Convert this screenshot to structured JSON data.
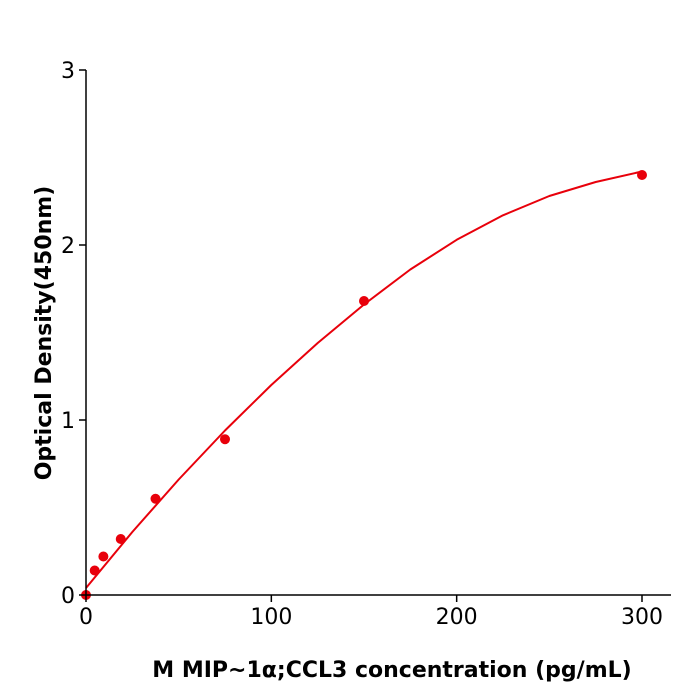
{
  "chart_data": {
    "type": "scatter",
    "xlabel": "M  MIP~1α;CCL3 concentration (pg/mL)",
    "ylabel": "Optical Density(450nm)",
    "xlim": [
      0,
      315
    ],
    "ylim": [
      0,
      3
    ],
    "xticks": [
      "0",
      "100",
      "200",
      "300"
    ],
    "yticks": [
      "0",
      "1",
      "2",
      "3"
    ],
    "grid": false,
    "colors": {
      "points": "#e8000b",
      "curve": "#e8000b",
      "axes": "#000000"
    },
    "points": {
      "x": [
        0,
        4.69,
        9.38,
        18.75,
        37.5,
        75,
        150,
        300
      ],
      "y": [
        0.0,
        0.14,
        0.22,
        0.32,
        0.55,
        0.89,
        1.68,
        2.4
      ]
    },
    "fit_curve": {
      "x": [
        0,
        25,
        50,
        75,
        100,
        125,
        150,
        175,
        200,
        225,
        250,
        275,
        300
      ],
      "y": [
        0.04,
        0.36,
        0.66,
        0.94,
        1.2,
        1.44,
        1.66,
        1.86,
        2.03,
        2.17,
        2.28,
        2.36,
        2.42
      ]
    }
  }
}
